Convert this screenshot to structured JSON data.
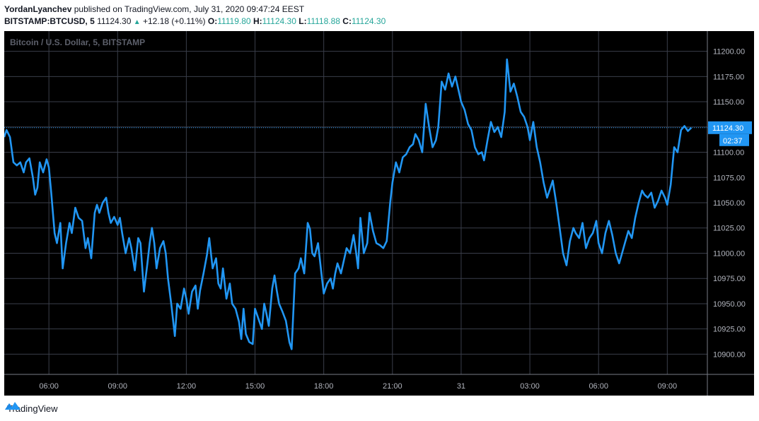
{
  "header": {
    "author": "YordanLyanchev",
    "published": "published on TradingView.com, July 31, 2020 09:47:24 EEST"
  },
  "quote": {
    "symbol": "BITSTAMP:BTCUSD, 5",
    "last": "11124.30",
    "change": "+12.18 (+0.11%)",
    "o_label": "O:",
    "o_value": "11119.80",
    "h_label": "H:",
    "h_value": "11124.30",
    "l_label": "L:",
    "l_value": "11118.88",
    "c_label": "C:",
    "c_value": "11124.30"
  },
  "chart_data": {
    "type": "line",
    "title": "Bitcoin / U.S. Dollar, 5, BITSTAMP",
    "ylim": [
      10880,
      11220
    ],
    "y_ticks": [
      "11200.00",
      "11175.00",
      "11150.00",
      "11125.00",
      "11100.00",
      "11075.00",
      "11050.00",
      "11025.00",
      "11000.00",
      "10975.00",
      "10950.00",
      "10925.00",
      "10900.00"
    ],
    "x_ticks": [
      "06:00",
      "09:00",
      "12:00",
      "15:00",
      "18:00",
      "21:00",
      "31",
      "03:00",
      "06:00",
      "09:00"
    ],
    "x_tick_hours": [
      6,
      9,
      12,
      15,
      18,
      21,
      24,
      27,
      30,
      33
    ],
    "x_range_hours": [
      4.05,
      34.75
    ],
    "last_price_label": "11124.30",
    "countdown_label": "02:37",
    "series": [
      {
        "color": "#2196f3",
        "x": [
          4.05,
          4.15,
          4.3,
          4.45,
          4.6,
          4.75,
          4.9,
          5.0,
          5.15,
          5.3,
          5.4,
          5.5,
          5.6,
          5.75,
          5.9,
          6.0,
          6.1,
          6.25,
          6.35,
          6.5,
          6.6,
          6.75,
          6.9,
          7.0,
          7.15,
          7.3,
          7.45,
          7.6,
          7.7,
          7.85,
          8.0,
          8.1,
          8.2,
          8.35,
          8.5,
          8.6,
          8.7,
          8.85,
          9.0,
          9.1,
          9.2,
          9.35,
          9.5,
          9.6,
          9.75,
          9.9,
          10.0,
          10.15,
          10.3,
          10.4,
          10.5,
          10.6,
          10.7,
          10.85,
          11.0,
          11.1,
          11.2,
          11.35,
          11.5,
          11.6,
          11.75,
          11.9,
          12.0,
          12.1,
          12.25,
          12.4,
          12.5,
          12.6,
          12.75,
          12.9,
          13.0,
          13.15,
          13.3,
          13.4,
          13.5,
          13.6,
          13.75,
          13.9,
          14.0,
          14.15,
          14.3,
          14.4,
          14.5,
          14.6,
          14.75,
          14.9,
          15.0,
          15.15,
          15.3,
          15.4,
          15.5,
          15.6,
          15.75,
          15.85,
          15.95,
          16.05,
          16.2,
          16.35,
          16.5,
          16.6,
          16.75,
          16.9,
          17.0,
          17.15,
          17.3,
          17.4,
          17.5,
          17.6,
          17.75,
          17.9,
          18.0,
          18.15,
          18.3,
          18.4,
          18.5,
          18.6,
          18.75,
          18.9,
          19.0,
          19.15,
          19.3,
          19.4,
          19.5,
          19.6,
          19.75,
          19.9,
          20.0,
          20.15,
          20.3,
          20.45,
          20.6,
          20.75,
          20.9,
          21.0,
          21.15,
          21.3,
          21.45,
          21.6,
          21.75,
          21.9,
          22.0,
          22.15,
          22.3,
          22.45,
          22.6,
          22.75,
          22.9,
          23.0,
          23.15,
          23.3,
          23.45,
          23.6,
          23.75,
          23.9,
          24.0,
          24.15,
          24.3,
          24.45,
          24.6,
          24.75,
          24.9,
          25.0,
          25.15,
          25.3,
          25.45,
          25.6,
          25.75,
          25.9,
          26.0,
          26.15,
          26.3,
          26.45,
          26.6,
          26.75,
          26.9,
          27.0,
          27.15,
          27.3,
          27.45,
          27.6,
          27.75,
          27.9,
          28.0,
          28.15,
          28.3,
          28.45,
          28.6,
          28.75,
          28.9,
          29.0,
          29.15,
          29.3,
          29.45,
          29.6,
          29.75,
          29.9,
          30.0,
          30.15,
          30.3,
          30.45,
          30.6,
          30.75,
          30.9,
          31.0,
          31.15,
          31.3,
          31.45,
          31.6,
          31.75,
          31.9,
          32.0,
          32.15,
          32.3,
          32.45,
          32.6,
          32.75,
          32.9,
          33.0,
          33.15,
          33.3,
          33.45,
          33.6,
          33.75,
          33.9,
          34.05
        ],
        "values": [
          11115,
          11122,
          11115,
          11090,
          11087,
          11090,
          11080,
          11090,
          11094,
          11075,
          11058,
          11065,
          11090,
          11080,
          11093,
          11085,
          11060,
          11020,
          11010,
          11030,
          10985,
          11010,
          11030,
          11020,
          11045,
          11035,
          11032,
          11005,
          11015,
          10995,
          11040,
          11048,
          11040,
          11050,
          11055,
          11040,
          11030,
          11036,
          11028,
          11035,
          11020,
          11000,
          11015,
          11005,
          10983,
          11015,
          11010,
          10962,
          10990,
          11010,
          11025,
          11010,
          10985,
          11005,
          11012,
          11000,
          10975,
          10948,
          10918,
          10950,
          10945,
          10965,
          10955,
          10940,
          10962,
          10968,
          10945,
          10963,
          10980,
          10998,
          11015,
          10985,
          10995,
          10970,
          10965,
          10985,
          10955,
          10970,
          10950,
          10945,
          10932,
          10915,
          10945,
          10920,
          10912,
          10910,
          10945,
          10935,
          10925,
          10950,
          10940,
          10928,
          10965,
          10978,
          10963,
          10950,
          10942,
          10933,
          10912,
          10905,
          10980,
          10985,
          10995,
          10980,
          11030,
          11024,
          11000,
          10997,
          11010,
          10980,
          10960,
          10970,
          10975,
          10965,
          10980,
          10990,
          10980,
          10995,
          11005,
          11000,
          11018,
          11003,
          10985,
          11035,
          11000,
          11010,
          11040,
          11022,
          11010,
          11008,
          11005,
          11012,
          11050,
          11070,
          11090,
          11080,
          11095,
          11098,
          11105,
          11108,
          11118,
          11112,
          11100,
          11148,
          11125,
          11105,
          11112,
          11125,
          11170,
          11162,
          11178,
          11165,
          11175,
          11160,
          11150,
          11142,
          11128,
          11122,
          11105,
          11098,
          11100,
          11092,
          11112,
          11130,
          11120,
          11125,
          11115,
          11140,
          11192,
          11160,
          11168,
          11155,
          11140,
          11135,
          11125,
          11112,
          11130,
          11105,
          11090,
          11070,
          11055,
          11065,
          11072,
          11050,
          11025,
          11000,
          10988,
          11012,
          11025,
          11020,
          11015,
          11030,
          11005,
          11015,
          11020,
          11032,
          11010,
          11000,
          11020,
          11032,
          11018,
          11000,
          10990,
          10998,
          11010,
          11022,
          11015,
          11035,
          11050,
          11062,
          11058,
          11055,
          11060,
          11045,
          11052,
          11062,
          11055,
          11048,
          11068,
          11105,
          11100,
          11122,
          11126,
          11121,
          11124.3
        ]
      }
    ]
  }
}
